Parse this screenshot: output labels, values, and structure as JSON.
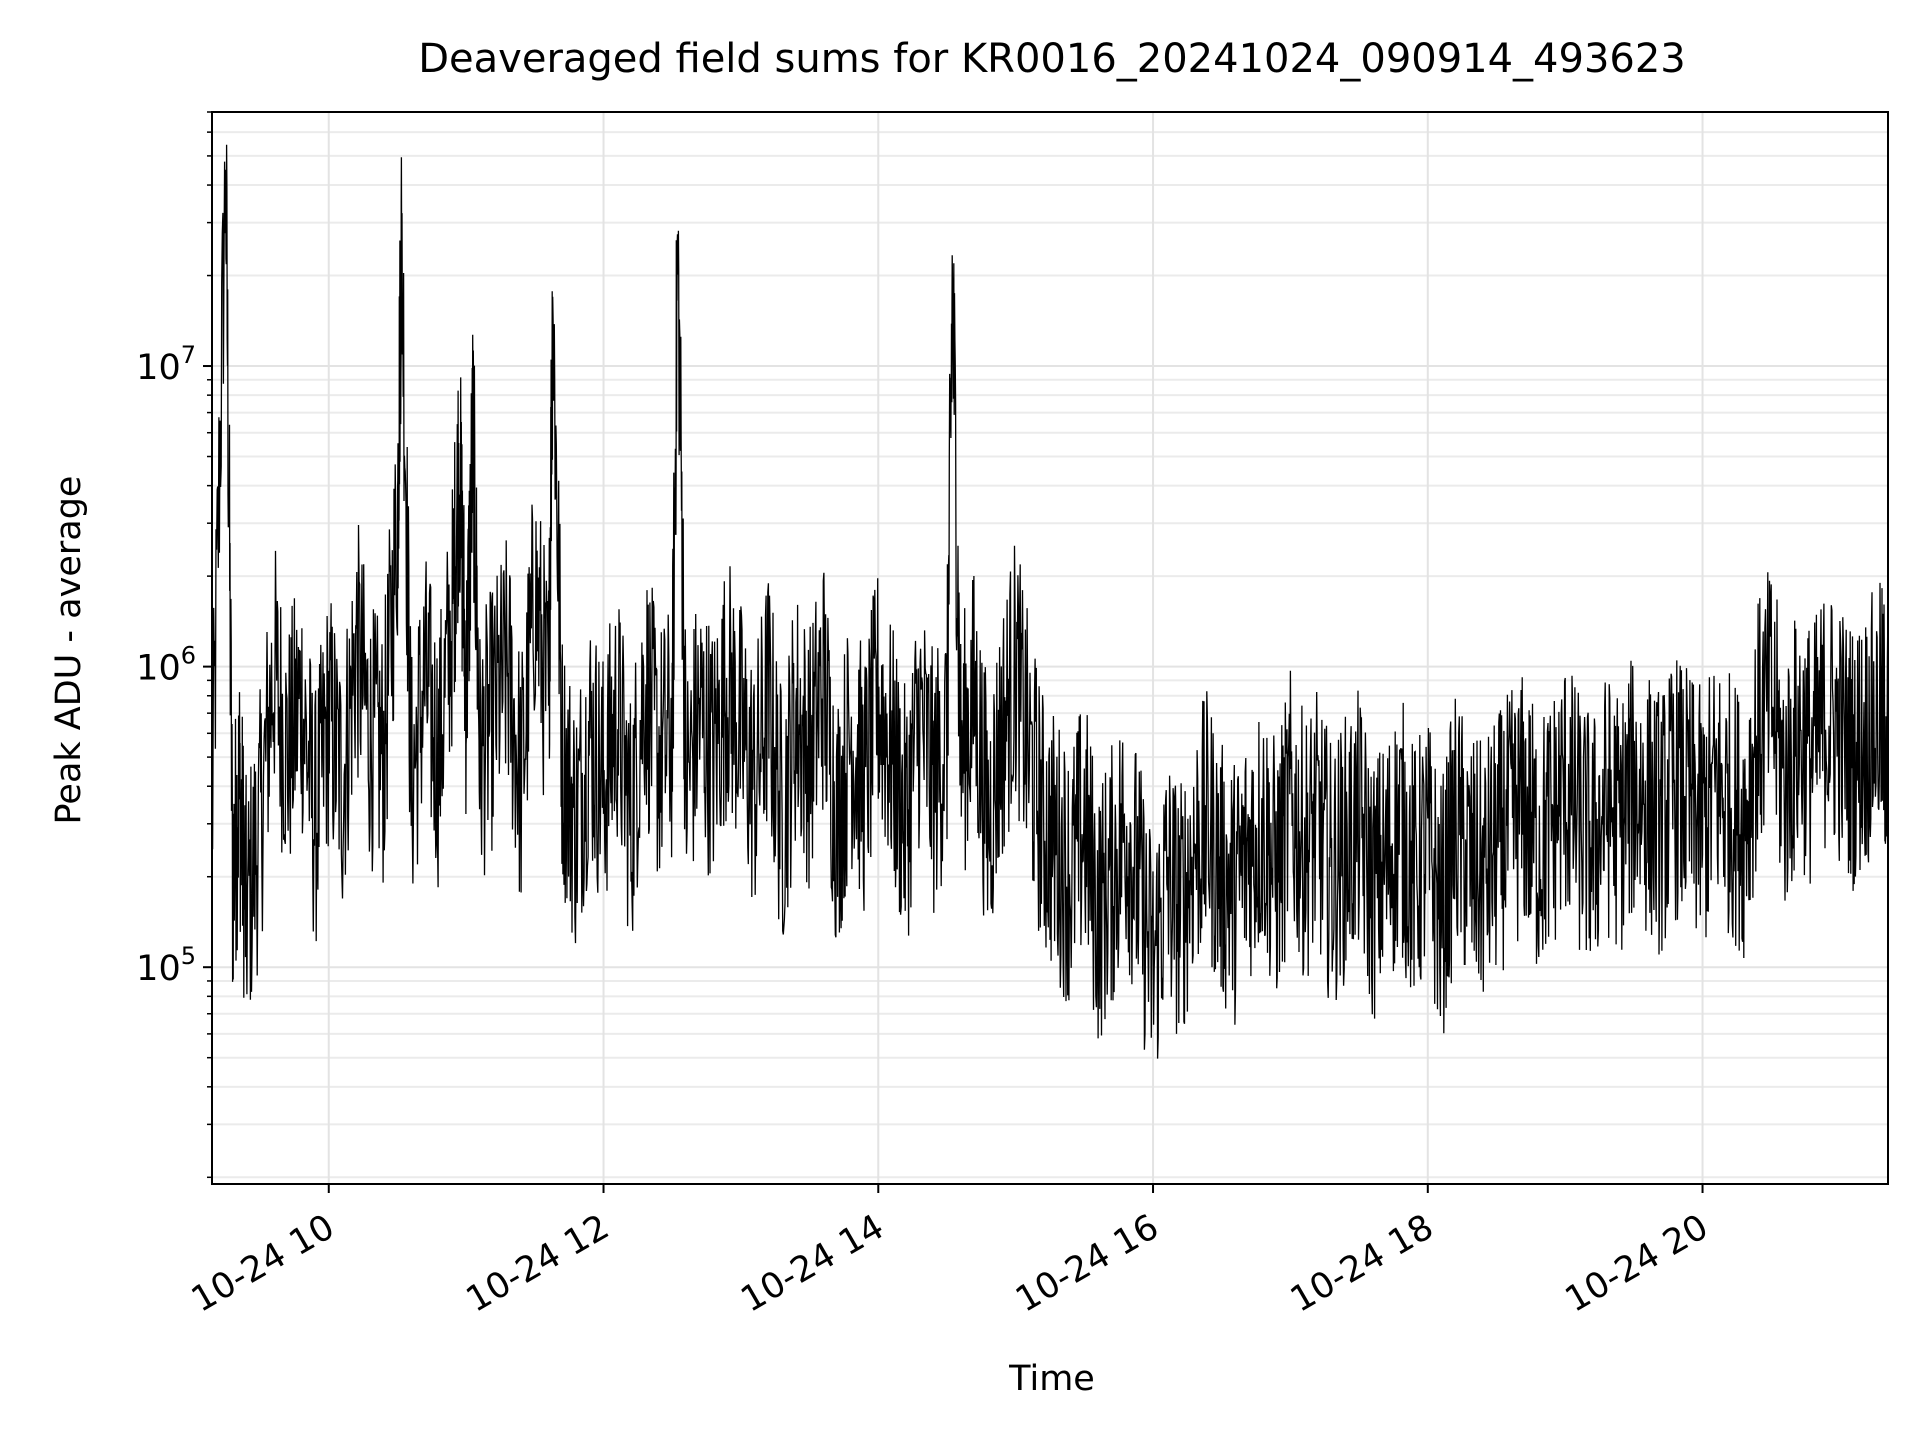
{
  "chart_data": {
    "type": "line",
    "title": "Deaveraged field sums for KR0016_20241024_090914_493623",
    "xlabel": "Time",
    "ylabel": "Peak ADU - average",
    "yscale": "log",
    "xlim_hours": [
      9.15,
      21.35
    ],
    "ylim": [
      19000,
      70000000
    ],
    "x_ticks": [
      {
        "hour": 10,
        "label": "10-24 10"
      },
      {
        "hour": 12,
        "label": "10-24 12"
      },
      {
        "hour": 14,
        "label": "10-24 14"
      },
      {
        "hour": 16,
        "label": "10-24 16"
      },
      {
        "hour": 18,
        "label": "10-24 18"
      },
      {
        "hour": 20,
        "label": "10-24 20"
      }
    ],
    "y_ticks": [
      {
        "value": 100000,
        "base": "10",
        "exp": "5"
      },
      {
        "value": 1000000,
        "base": "10",
        "exp": "6"
      },
      {
        "value": 10000000,
        "base": "10",
        "exp": "7"
      }
    ],
    "grid": true,
    "line_color": "#000000",
    "series": [
      {
        "x_hours": [
          9.15,
          9.25,
          9.3,
          9.35,
          9.4,
          9.5,
          9.6,
          9.7,
          9.8,
          9.9,
          10.0,
          10.1,
          10.2,
          10.3,
          10.4,
          10.5,
          10.53,
          10.6,
          10.7,
          10.8,
          10.9,
          10.95,
          11.0,
          11.05,
          11.1,
          11.2,
          11.3,
          11.4,
          11.5,
          11.6,
          11.63,
          11.7,
          11.8,
          11.9,
          12.0,
          12.1,
          12.2,
          12.3,
          12.4,
          12.5,
          12.54,
          12.6,
          12.7,
          12.8,
          12.9,
          13.0,
          13.1,
          13.2,
          13.3,
          13.4,
          13.5,
          13.6,
          13.7,
          13.8,
          13.9,
          14.0,
          14.1,
          14.2,
          14.3,
          14.4,
          14.5,
          14.54,
          14.6,
          14.7,
          14.8,
          14.9,
          15.0,
          15.1,
          15.2,
          15.3,
          15.4,
          15.5,
          15.6,
          15.7,
          15.8,
          15.9,
          16.0,
          16.1,
          16.2,
          16.3,
          16.4,
          16.5,
          16.6,
          16.7,
          16.8,
          16.9,
          17.0,
          17.1,
          17.2,
          17.3,
          17.4,
          17.5,
          17.6,
          17.7,
          17.8,
          17.9,
          18.0,
          18.1,
          18.2,
          18.3,
          18.4,
          18.5,
          18.6,
          18.7,
          18.8,
          18.9,
          19.0,
          19.1,
          19.2,
          19.3,
          19.4,
          19.5,
          19.6,
          19.7,
          19.8,
          19.9,
          20.0,
          20.1,
          20.2,
          20.3,
          20.4,
          20.5,
          20.6,
          20.7,
          20.8,
          20.9,
          21.0,
          21.1,
          21.2,
          21.3,
          21.35
        ],
        "y_values": [
          300000,
          45000000,
          200000,
          400000,
          150000,
          300000,
          1000000,
          500000,
          800000,
          300000,
          700000,
          400000,
          1200000,
          600000,
          500000,
          3000000,
          28000000,
          400000,
          900000,
          500000,
          1500000,
          5000000,
          800000,
          6000000,
          500000,
          700000,
          1000000,
          400000,
          1800000,
          700000,
          17000000,
          500000,
          300000,
          600000,
          400000,
          700000,
          300000,
          900000,
          500000,
          600000,
          25000000,
          400000,
          700000,
          500000,
          900000,
          600000,
          400000,
          800000,
          300000,
          700000,
          500000,
          900000,
          300000,
          600000,
          400000,
          800000,
          500000,
          300000,
          700000,
          400000,
          600000,
          19000000,
          500000,
          800000,
          300000,
          600000,
          1000000,
          500000,
          300000,
          250000,
          200000,
          300000,
          150000,
          200000,
          300000,
          180000,
          100000,
          200000,
          150000,
          250000,
          300000,
          200000,
          180000,
          250000,
          300000,
          200000,
          350000,
          250000,
          300000,
          200000,
          250000,
          300000,
          180000,
          220000,
          300000,
          200000,
          250000,
          150000,
          300000,
          220000,
          200000,
          250000,
          300000,
          350000,
          250000,
          300000,
          400000,
          300000,
          250000,
          350000,
          300000,
          400000,
          350000,
          300000,
          400000,
          350000,
          300000,
          400000,
          350000,
          300000,
          600000,
          800000,
          400000,
          600000,
          500000,
          700000,
          600000,
          500000,
          600000,
          700000,
          550000
        ]
      }
    ]
  }
}
